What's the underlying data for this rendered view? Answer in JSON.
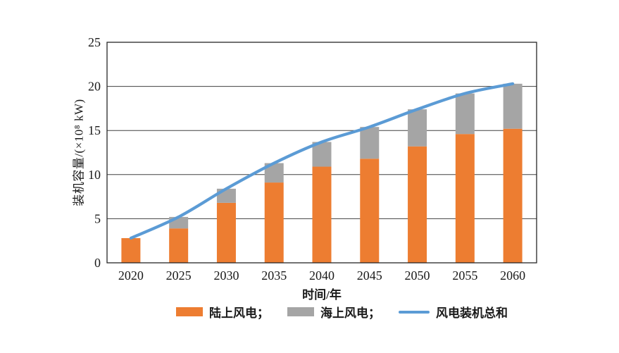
{
  "page": {
    "background": "#ffffff"
  },
  "chart_data": {
    "type": "combo-stacked-bar-line",
    "title": "",
    "categories": [
      "2020",
      "2025",
      "2030",
      "2035",
      "2040",
      "2045",
      "2050",
      "2055",
      "2060"
    ],
    "series": [
      {
        "name": "陆上风电",
        "type": "bar",
        "stack": true,
        "color": "#ED7D31",
        "values": [
          2.8,
          3.9,
          6.8,
          9.1,
          10.9,
          11.8,
          13.2,
          14.6,
          15.2
        ]
      },
      {
        "name": "海上风电",
        "type": "bar",
        "stack": true,
        "color": "#A5A5A5",
        "values": [
          0,
          1.3,
          1.6,
          2.2,
          2.8,
          3.6,
          4.2,
          4.6,
          5.1
        ]
      },
      {
        "name": "风电装机总和",
        "type": "line",
        "color": "#5B9BD5",
        "values": [
          2.8,
          5.2,
          8.4,
          11.3,
          13.7,
          15.4,
          17.4,
          19.2,
          20.3
        ]
      }
    ],
    "xlabel": "时间/年",
    "ylabel": "装机容量/(×10⁸ kW)",
    "ylim": [
      0,
      25
    ],
    "ytick_step": 5,
    "grid": true,
    "frame": true,
    "colors": {
      "grid": "#404040",
      "frame": "#262626",
      "text": "#1a1a1a"
    },
    "legend": {
      "position": "bottom",
      "items": [
        {
          "label": "陆上风电；",
          "swatch": "bar",
          "color": "#ED7D31"
        },
        {
          "label": "海上风电；",
          "swatch": "bar",
          "color": "#A5A5A5"
        },
        {
          "label": "风电装机总和",
          "swatch": "line",
          "color": "#5B9BD5"
        }
      ]
    }
  }
}
